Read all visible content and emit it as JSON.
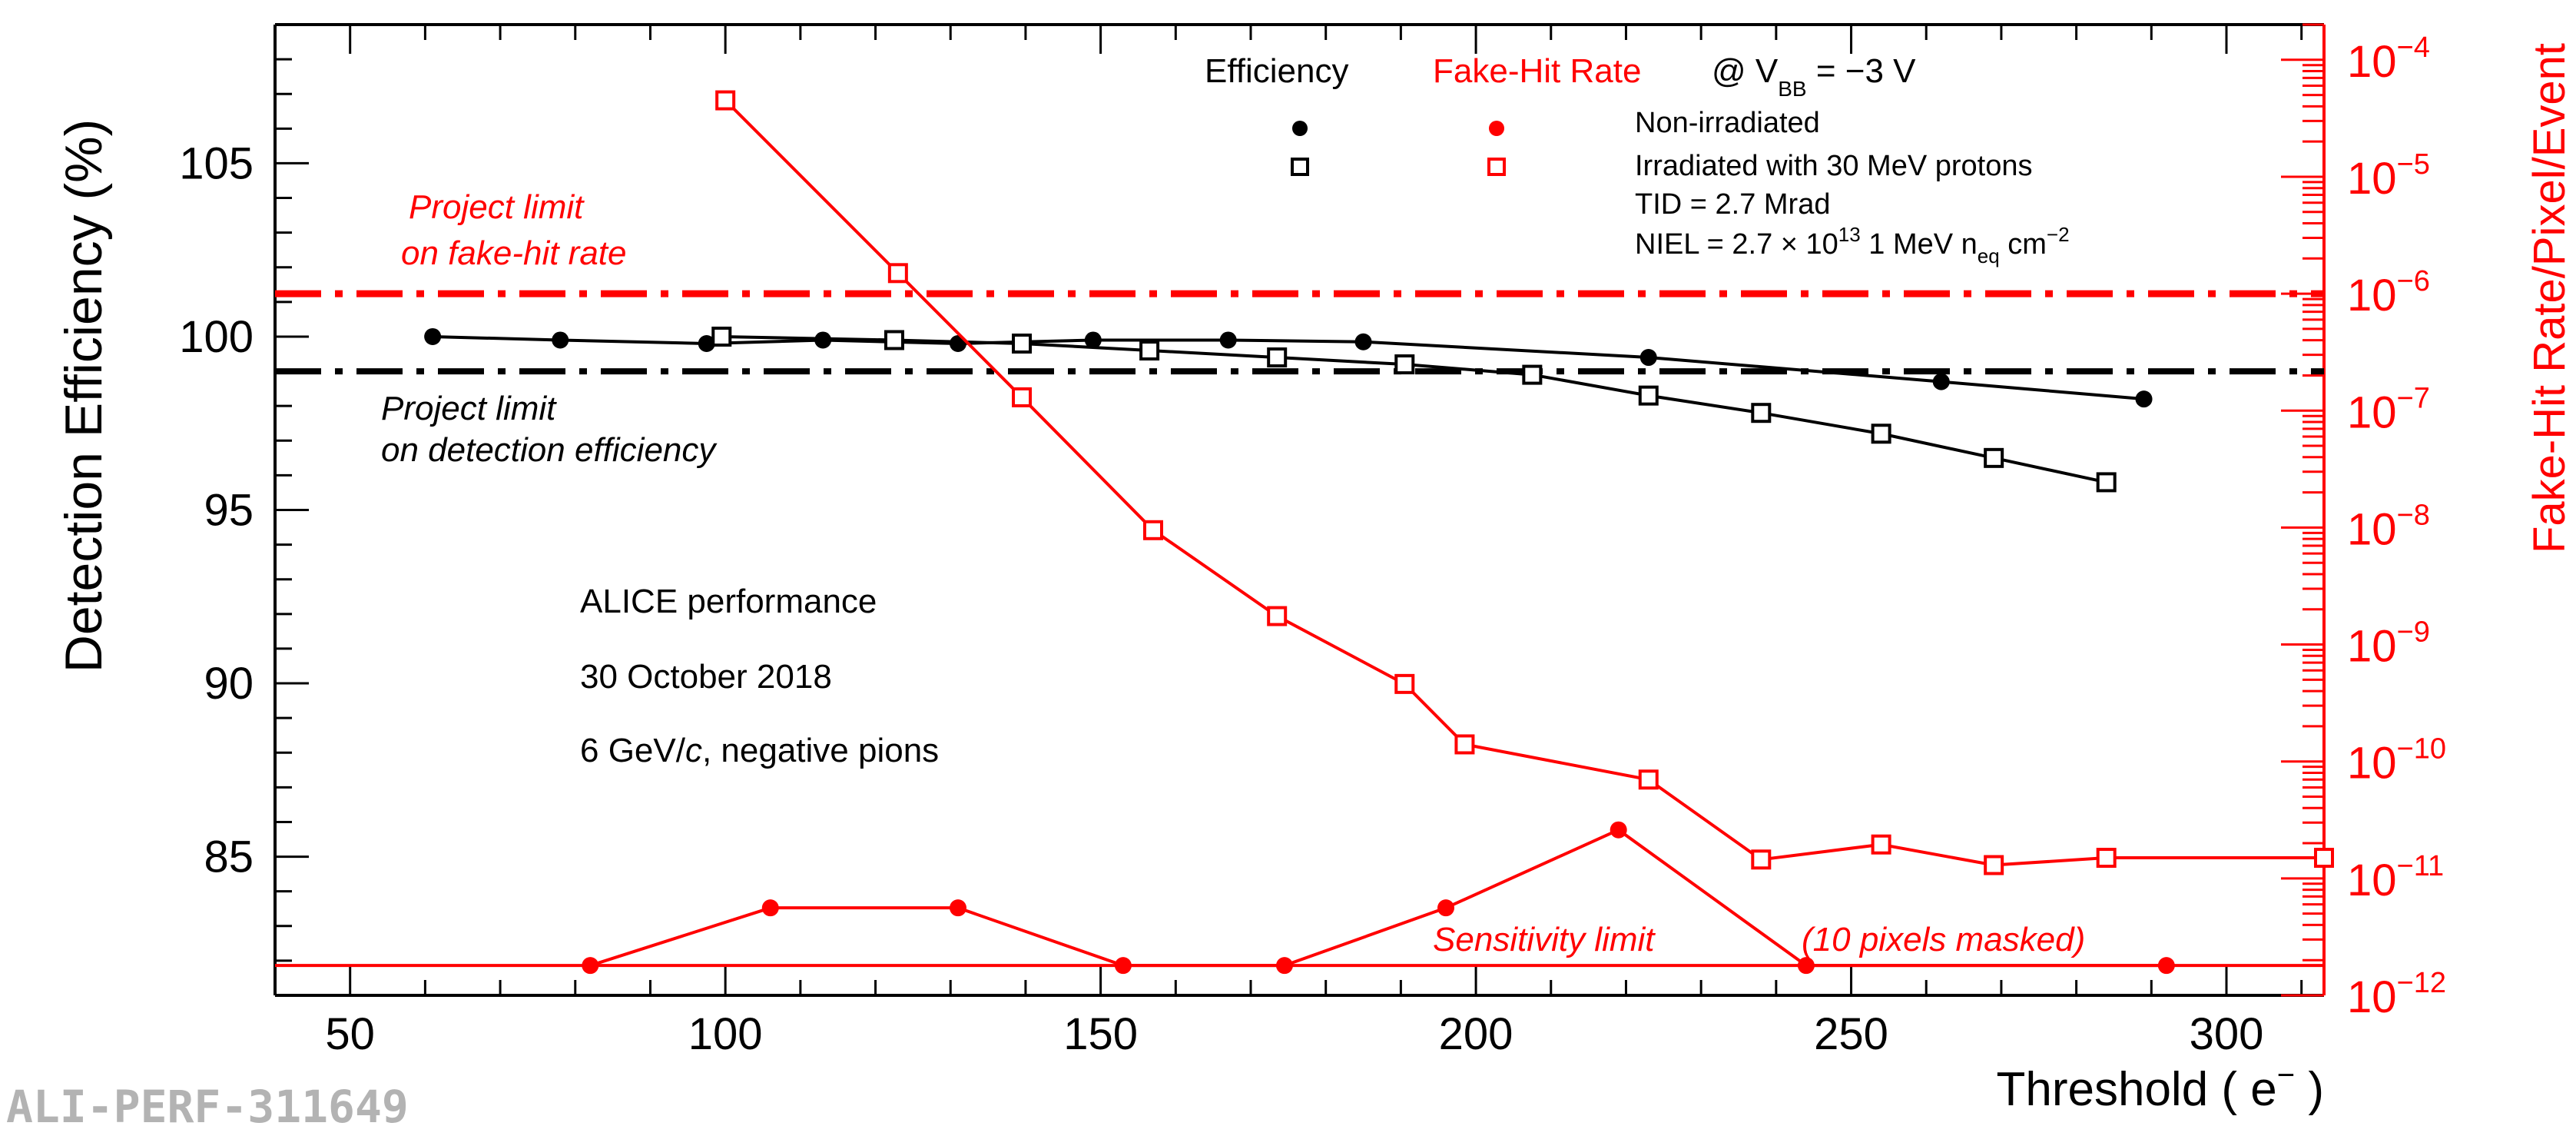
{
  "chart_data": {
    "type": "line",
    "x_axis": {
      "label": "Threshold ( e",
      "label_superscript": "−",
      "label_close": " )",
      "range": [
        40,
        313
      ],
      "ticks": [
        50,
        100,
        150,
        200,
        250,
        300
      ],
      "tick_labels": [
        "50",
        "100",
        "150",
        "200",
        "250",
        "300"
      ]
    },
    "y_left": {
      "label": "Detection Efficiency (%)",
      "range": [
        81,
        109
      ],
      "ticks": [
        85,
        90,
        95,
        100,
        105
      ],
      "tick_labels": [
        "85",
        "90",
        "95",
        "100",
        "105"
      ]
    },
    "y_right": {
      "label": "Fake-Hit Rate/Pixel/Event",
      "scale": "log",
      "range": [
        1e-12,
        0.0002
      ],
      "ticks": [
        1e-12,
        1e-11,
        1e-10,
        1e-09,
        1e-08,
        1e-07,
        1e-06,
        1e-05,
        0.0001
      ],
      "tick_base": "10",
      "tick_exponents": [
        "−12",
        "−11",
        "−10",
        "−9",
        "−8",
        "−7",
        "−6",
        "−5",
        "−4"
      ]
    },
    "series": [
      {
        "name": "Efficiency, non-irradiated",
        "axis": "left",
        "marker": "filled-circle",
        "color": "#000000",
        "points": [
          [
            61,
            100.0
          ],
          [
            78,
            99.9
          ],
          [
            97.5,
            99.8
          ],
          [
            113,
            99.9
          ],
          [
            131,
            99.8
          ],
          [
            149,
            99.9
          ],
          [
            167,
            99.9
          ],
          [
            185,
            99.85
          ],
          [
            223,
            99.4
          ],
          [
            262,
            98.7
          ],
          [
            289,
            98.2
          ]
        ]
      },
      {
        "name": "Efficiency, irradiated",
        "axis": "left",
        "marker": "open-square",
        "color": "#000000",
        "points": [
          [
            99.5,
            100.0
          ],
          [
            122.5,
            99.9
          ],
          [
            139.5,
            99.8
          ],
          [
            156.5,
            99.6
          ],
          [
            173.5,
            99.4
          ],
          [
            190.5,
            99.2
          ],
          [
            207.5,
            98.9
          ],
          [
            223,
            98.3
          ],
          [
            238,
            97.8
          ],
          [
            254,
            97.2
          ],
          [
            269,
            96.5
          ],
          [
            284,
            95.8
          ]
        ]
      },
      {
        "name": "Fake-hit rate, non-irradiated",
        "axis": "right",
        "marker": "filled-circle",
        "color": "#ff0000",
        "points": [
          [
            82,
            1.8e-12
          ],
          [
            106,
            5.6e-12
          ],
          [
            131,
            5.6e-12
          ],
          [
            153,
            1.8e-12
          ],
          [
            174.5,
            1.8e-12
          ],
          [
            196,
            5.6e-12
          ],
          [
            219,
            2.6e-11
          ],
          [
            244,
            1.8e-12
          ],
          [
            292,
            1.8e-12
          ]
        ]
      },
      {
        "name": "Fake-hit rate, irradiated",
        "axis": "right",
        "marker": "open-square",
        "color": "#ff0000",
        "points": [
          [
            100,
            4.5e-05
          ],
          [
            123,
            1.5e-06
          ],
          [
            139.5,
            1.3e-07
          ],
          [
            157,
            9.5e-09
          ],
          [
            173.5,
            1.75e-09
          ],
          [
            190.5,
            4.6e-10
          ],
          [
            198.5,
            1.4e-10
          ],
          [
            223,
            7e-11
          ],
          [
            238,
            1.45e-11
          ],
          [
            254,
            1.95e-11
          ],
          [
            269,
            1.3e-11
          ],
          [
            284,
            1.5e-11
          ],
          [
            313,
            1.5e-11
          ]
        ]
      }
    ],
    "reference_lines": [
      {
        "label_line1": "Project limit",
        "label_line2": "on fake-hit rate",
        "axis": "right",
        "value": 1e-06,
        "color": "#ff0000",
        "style": "dash-dot"
      },
      {
        "label_line1": "Project limit",
        "label_line2": "on detection efficiency",
        "axis": "left",
        "value": 99.0,
        "color": "#000000",
        "style": "dash-dot"
      },
      {
        "label_line1": "Sensitivity limit",
        "label_line2": "(10 pixels masked)",
        "axis": "right",
        "value": 1.8e-12,
        "color": "#ff0000",
        "style": "solid"
      }
    ],
    "legend": {
      "position": "top-right",
      "col_efficiency": "Efficiency",
      "col_fakehit": "Fake-Hit Rate",
      "condition_prefix": "@ V",
      "condition_sub": "BB",
      "condition_value": " = −3 V",
      "entry_nonirr": "Non-irradiated",
      "entry_irr": "Irradiated with 30 MeV protons",
      "tid": "TID = 2.7 Mrad",
      "niel_prefix": "NIEL = 2.7 × 10",
      "niel_exp": "13",
      "niel_mid": "  1 MeV n",
      "niel_sub": "eq",
      "niel_unit": " cm",
      "niel_unit_exp": "−2"
    },
    "annotations": {
      "line1": "ALICE performance",
      "line2": "30 October 2018",
      "line3_prefix": "6 GeV/",
      "line3_italic": "c",
      "line3_suffix": ", negative pions"
    },
    "watermark": "ALI-PERF-311649"
  }
}
